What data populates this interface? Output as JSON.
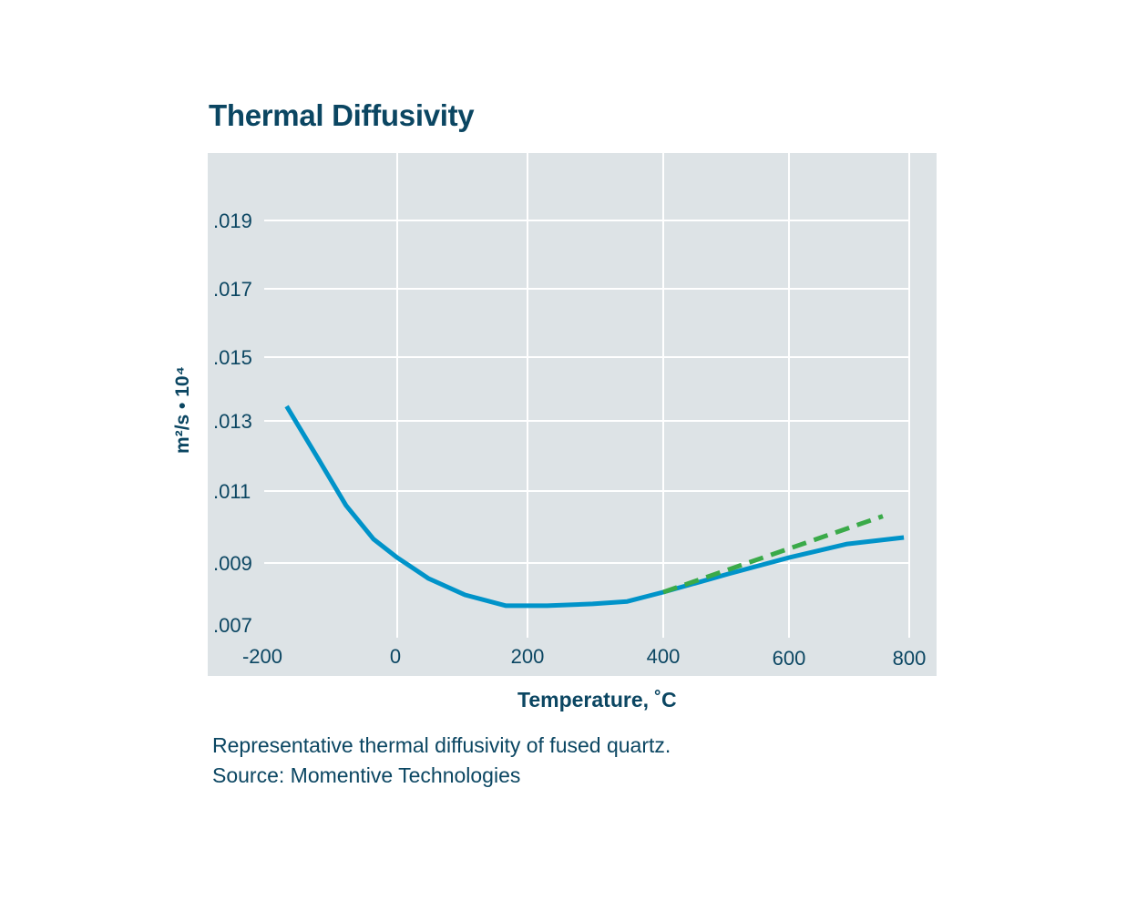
{
  "chart_data": {
    "type": "line",
    "title": "Thermal Diffusivity",
    "xlabel": "Temperature, ˚C",
    "ylabel": "m²/s • 10⁴",
    "xlim": [
      -200,
      800
    ],
    "ylim": [
      0.007,
      0.021
    ],
    "grid": true,
    "x_ticks": [
      "-200",
      "0",
      "200",
      "400",
      "600",
      "800"
    ],
    "y_ticks": [
      ".007",
      ".009",
      ".011",
      ".013",
      ".015",
      ".017",
      ".019"
    ],
    "colors": {
      "background": "#dde3e6",
      "primary": "#0093c9",
      "dashed": "#3aaa49",
      "text": "#0b4662"
    },
    "series": [
      {
        "style": "solid",
        "color": "#0093c9",
        "x": [
          -164,
          -116,
          -76,
          -35,
          0,
          48,
          104,
          167,
          229,
          296,
          347,
          400,
          504,
          600,
          697,
          791
        ],
        "y": [
          0.01346,
          0.01188,
          0.0106,
          0.00966,
          0.00915,
          0.0085,
          0.00797,
          0.00762,
          0.00762,
          0.00768,
          0.00776,
          0.00806,
          0.00865,
          0.00915,
          0.00953,
          0.00971
        ]
      },
      {
        "style": "dashed",
        "color": "#3aaa49",
        "x": [
          400,
          756
        ],
        "y": [
          0.00806,
          0.0103
        ]
      }
    ]
  },
  "caption": {
    "line1": "Representative thermal diffusivity of fused quartz.",
    "line2": "Source: Momentive Technologies"
  }
}
